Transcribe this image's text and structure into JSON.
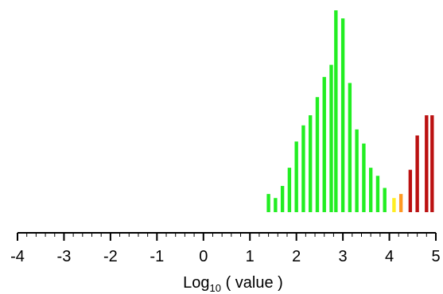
{
  "chart_data": {
    "type": "bar",
    "xlabel_base": "Log",
    "xlabel_sub": "10",
    "xlabel_rest": " ( value )",
    "xlim": [
      -4,
      5
    ],
    "ylim": [
      0,
      100
    ],
    "grid": false,
    "x_ticks": [
      -4,
      -3,
      -2,
      -1,
      0,
      1,
      2,
      3,
      4,
      5
    ],
    "x_tick_labels": [
      "-4",
      "-3",
      "-2",
      "-1",
      "0",
      "1",
      "2",
      "3",
      "4",
      "5"
    ],
    "bar_width": 0.1,
    "bars": [
      {
        "x": 1.4,
        "y": 9,
        "color": "#22ee22"
      },
      {
        "x": 1.55,
        "y": 7,
        "color": "#22ee22"
      },
      {
        "x": 1.7,
        "y": 13,
        "color": "#22ee22"
      },
      {
        "x": 1.85,
        "y": 22,
        "color": "#22ee22"
      },
      {
        "x": 2.0,
        "y": 35,
        "color": "#22ee22"
      },
      {
        "x": 2.15,
        "y": 43,
        "color": "#22ee22"
      },
      {
        "x": 2.3,
        "y": 48,
        "color": "#22ee22"
      },
      {
        "x": 2.45,
        "y": 57,
        "color": "#22ee22"
      },
      {
        "x": 2.6,
        "y": 67,
        "color": "#22ee22"
      },
      {
        "x": 2.75,
        "y": 73,
        "color": "#22ee22"
      },
      {
        "x": 2.85,
        "y": 100,
        "color": "#22ee22"
      },
      {
        "x": 3.0,
        "y": 96,
        "color": "#22ee22"
      },
      {
        "x": 3.15,
        "y": 64,
        "color": "#22ee22"
      },
      {
        "x": 3.3,
        "y": 41,
        "color": "#22ee22"
      },
      {
        "x": 3.45,
        "y": 34,
        "color": "#22ee22"
      },
      {
        "x": 3.6,
        "y": 22,
        "color": "#22ee22"
      },
      {
        "x": 3.75,
        "y": 18,
        "color": "#22ee22"
      },
      {
        "x": 3.9,
        "y": 12,
        "color": "#22ee22"
      },
      {
        "x": 4.1,
        "y": 7,
        "color": "#ffee22"
      },
      {
        "x": 4.25,
        "y": 9,
        "color": "#ff9922"
      },
      {
        "x": 4.45,
        "y": 21,
        "color": "#bb1111"
      },
      {
        "x": 4.6,
        "y": 38,
        "color": "#bb1111"
      },
      {
        "x": 4.8,
        "y": 48,
        "color": "#bb1111"
      },
      {
        "x": 4.92,
        "y": 48,
        "color": "#bb1111"
      }
    ]
  }
}
